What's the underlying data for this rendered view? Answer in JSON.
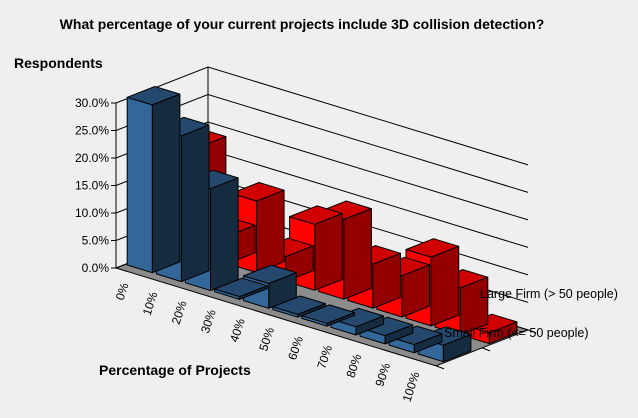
{
  "chart_data": {
    "type": "bar",
    "title": "What percentage of your current projects include 3D collision detection?",
    "xlabel": "Percentage of Projects",
    "ylabel": "Respondents",
    "categories": [
      "0%",
      "10%",
      "20%",
      "30%",
      "40%",
      "50%",
      "60%",
      "70%",
      "80%",
      "90%",
      "100%"
    ],
    "yticks": [
      "0.0%",
      "5.0%",
      "10.0%",
      "15.0%",
      "20.0%",
      "25.0%",
      "30.0%"
    ],
    "ylim": [
      0,
      30
    ],
    "grid": true,
    "series": [
      {
        "name": "Small Firm (<= 50 people)",
        "color": "#336699",
        "values": [
          30.5,
          26.5,
          18.5,
          0.5,
          4.5,
          0.5,
          0.5,
          1.5,
          1.5,
          1.5,
          3.0
        ]
      },
      {
        "name": "Large Firm (> 50 people)",
        "color": "#ff0000",
        "values": [
          19.5,
          5.0,
          13.0,
          4.5,
          12.0,
          14.5,
          8.0,
          7.5,
          12.5,
          8.5,
          2.0
        ]
      }
    ]
  }
}
